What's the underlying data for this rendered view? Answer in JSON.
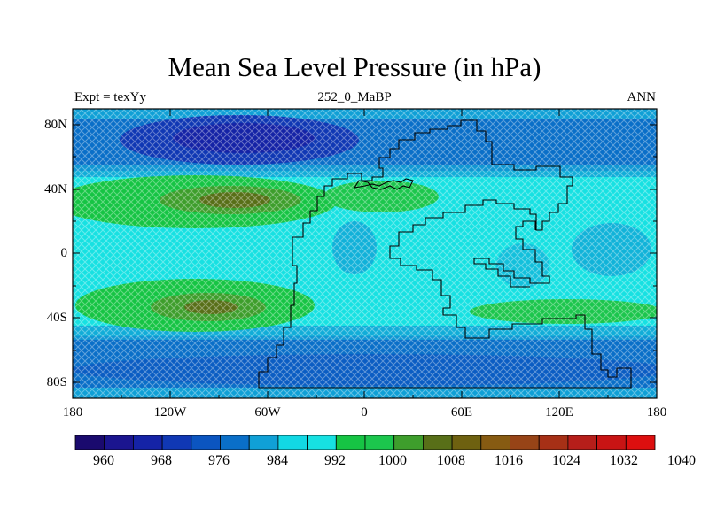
{
  "title": "Mean Sea Level Pressure (in hPa)",
  "subtitle_left": "Expt = texYy",
  "subtitle_center": "252_0_MaBP",
  "subtitle_right": "ANN",
  "map": {
    "lat_labels": [
      "80N",
      "40N",
      "0",
      "40S",
      "80S"
    ],
    "lon_labels": [
      "180",
      "120W",
      "60W",
      "0",
      "60E",
      "120E",
      "180"
    ]
  },
  "colorbar": {
    "labels": [
      "960",
      "968",
      "976",
      "984",
      "992",
      "1000",
      "1008",
      "1016",
      "1024",
      "1032",
      "1040"
    ],
    "colors": [
      "#1a0a6e",
      "#1b158f",
      "#1523a6",
      "#1038b4",
      "#0b55c0",
      "#0a6fc8",
      "#10a0d6",
      "#12d8e4",
      "#17e1e2",
      "#16c444",
      "#1cc64d",
      "#3e9e2c",
      "#586f18",
      "#6e6110",
      "#875b12",
      "#974417",
      "#a63016",
      "#b61e1a",
      "#c81414",
      "#dd0f0f"
    ]
  }
}
